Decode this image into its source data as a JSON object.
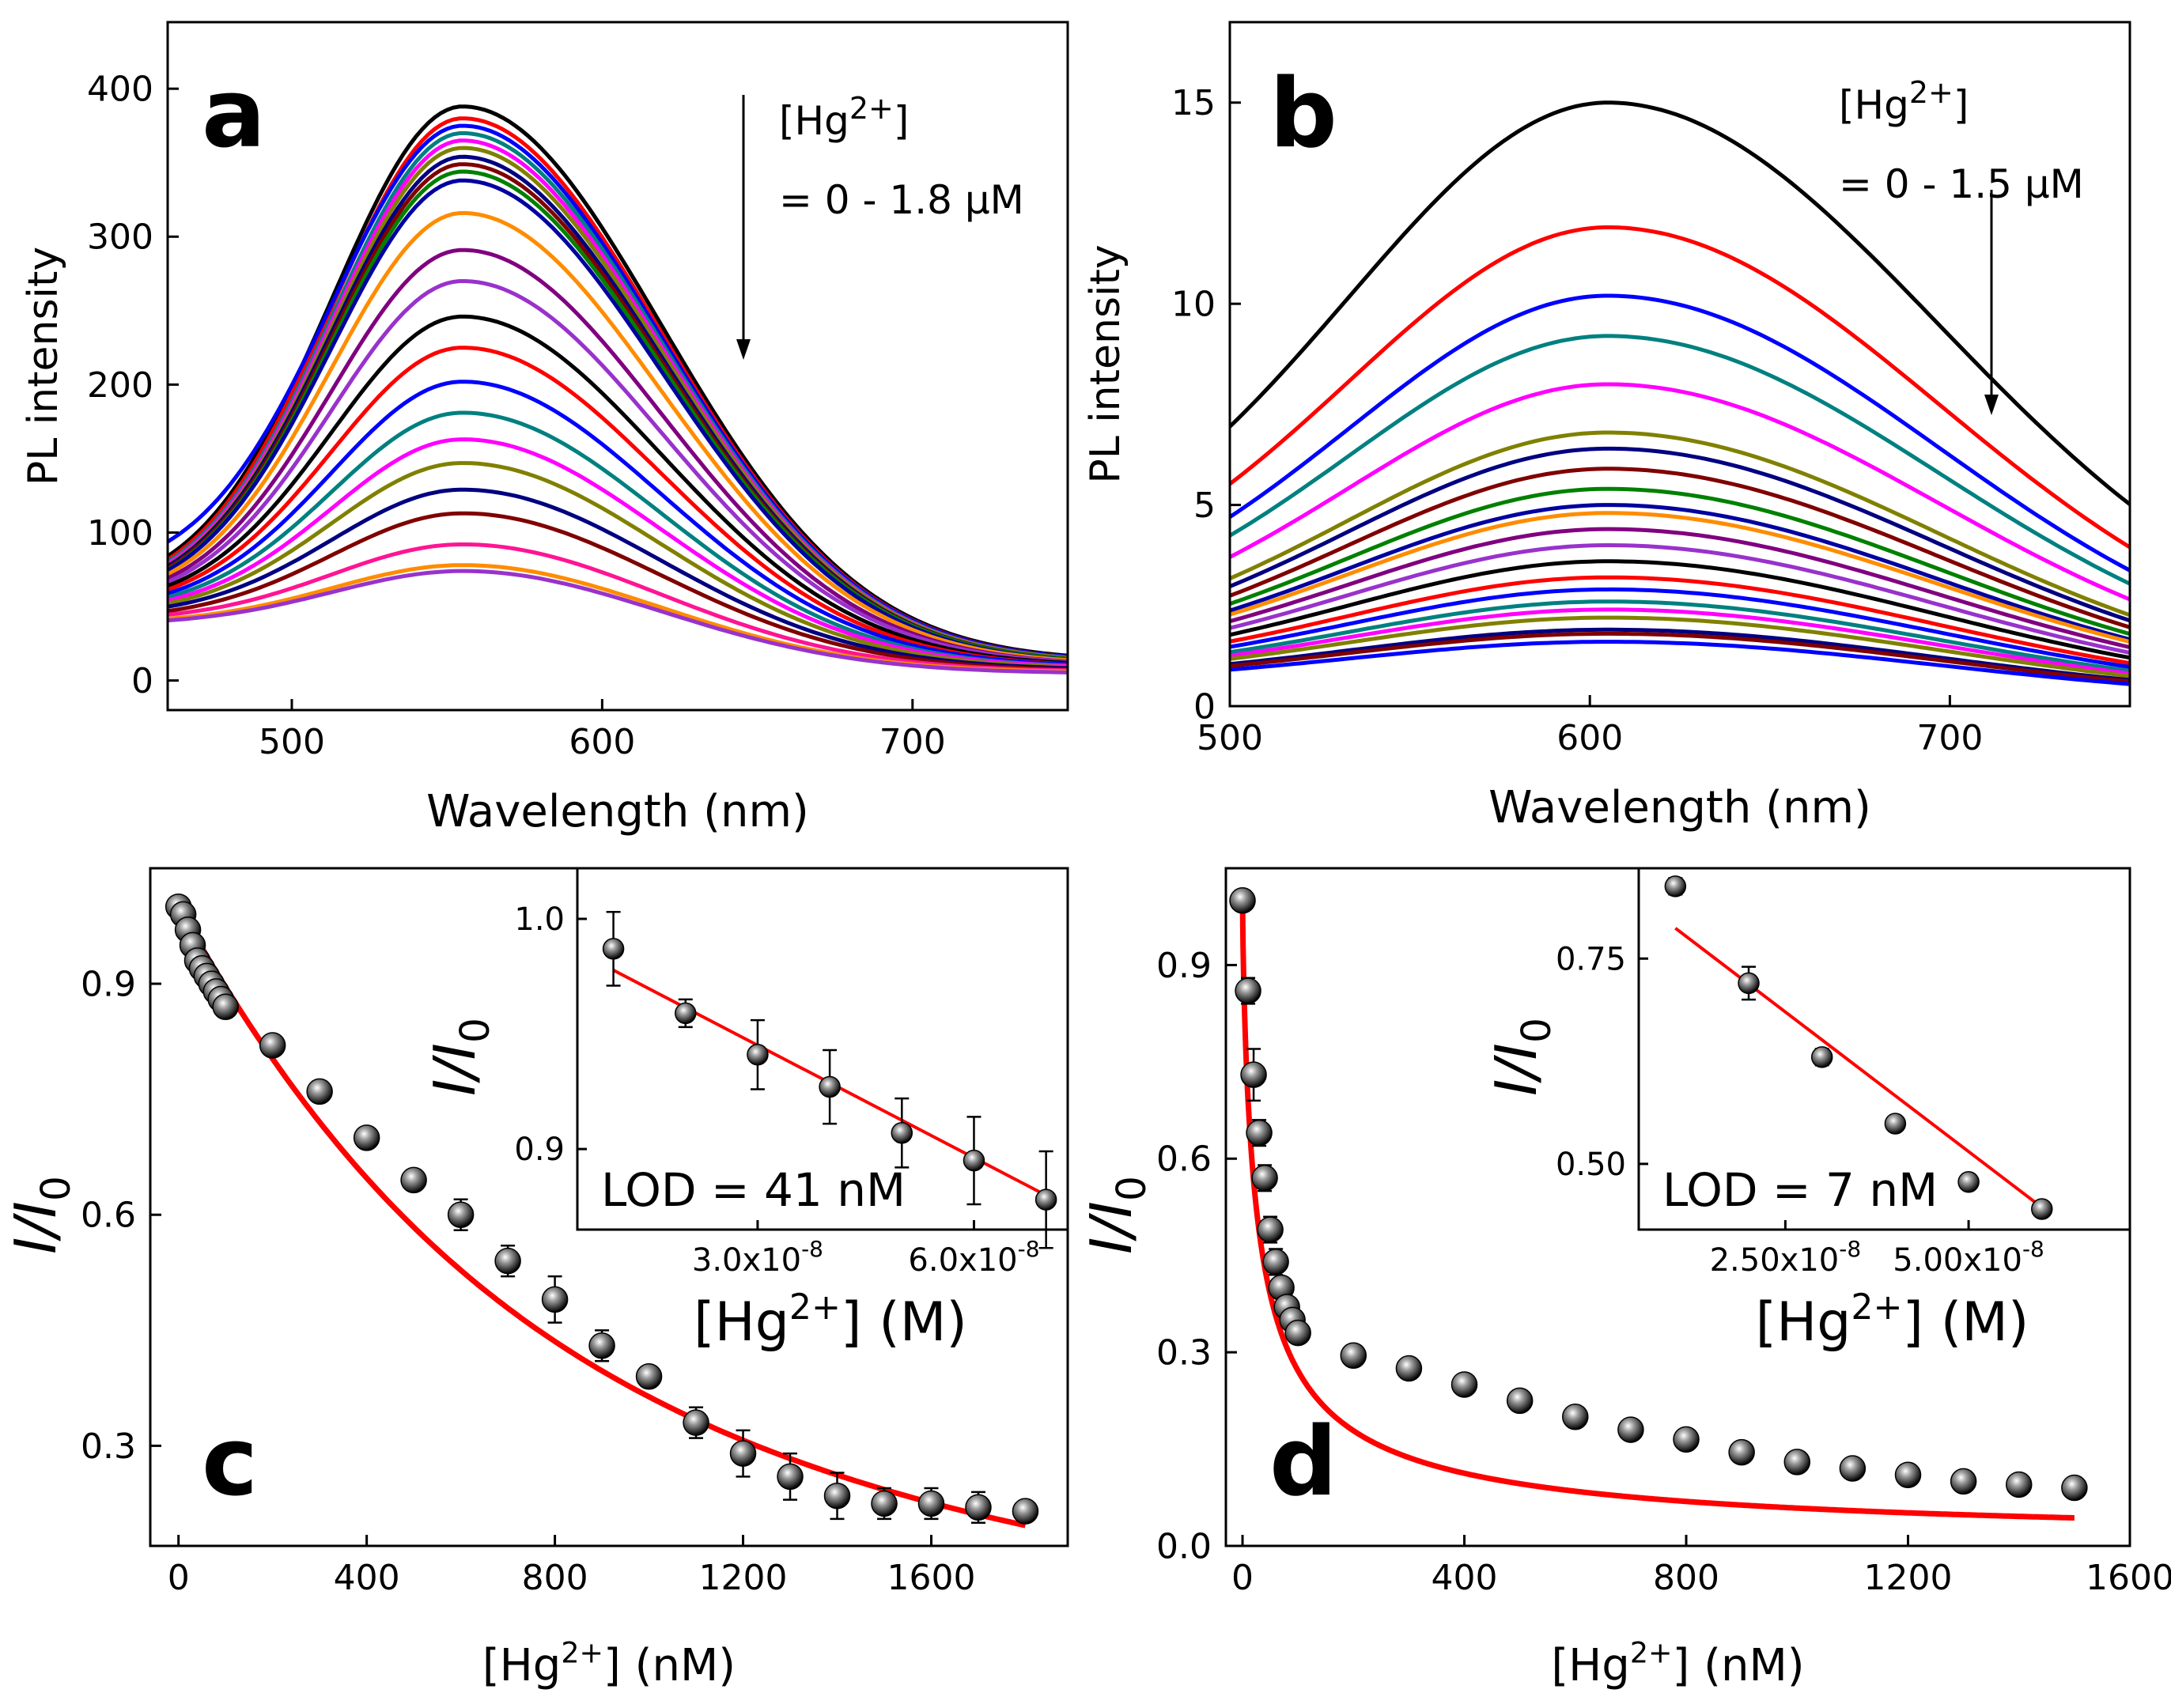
{
  "figure_description_free": true,
  "chart_data": [
    {
      "id": "a",
      "type": "line",
      "panel_letter": "a",
      "xlabel": "Wavelength (nm)",
      "ylabel": "PL intensity",
      "xlim": [
        460,
        750
      ],
      "ylim": [
        -20,
        445
      ],
      "xticks": [
        500,
        600,
        700
      ],
      "yticks": [
        0,
        100,
        200,
        300,
        400
      ],
      "annotation_line1": "[Hg",
      "annotation_sup": "2+",
      "annotation_line1_end": "]",
      "annotation_line2": "= 0 - 1.8 μM",
      "peak_nm": 555,
      "sigma_left": 42,
      "sigma_right": 64,
      "series": [
        {
          "color": "#000000",
          "peak": 388,
          "base_left": 65,
          "tail_right": 22
        },
        {
          "color": "#ff0000",
          "peak": 380,
          "base_left": 63,
          "tail_right": 21
        },
        {
          "color": "#0000ff",
          "peak": 375,
          "base_left": 78,
          "tail_right": 21
        },
        {
          "color": "#008080",
          "peak": 370,
          "base_left": 62,
          "tail_right": 20
        },
        {
          "color": "#ff00ff",
          "peak": 365,
          "base_left": 61,
          "tail_right": 20
        },
        {
          "color": "#808000",
          "peak": 360,
          "base_left": 60,
          "tail_right": 20
        },
        {
          "color": "#000080",
          "peak": 354,
          "base_left": 60,
          "tail_right": 19
        },
        {
          "color": "#800000",
          "peak": 349,
          "base_left": 59,
          "tail_right": 19
        },
        {
          "color": "#008000",
          "peak": 344,
          "base_left": 58,
          "tail_right": 19
        },
        {
          "color": "#0000a0",
          "peak": 338,
          "base_left": 58,
          "tail_right": 18
        },
        {
          "color": "#ff8c00",
          "peak": 316,
          "base_left": 57,
          "tail_right": 18
        },
        {
          "color": "#800080",
          "peak": 291,
          "base_left": 56,
          "tail_right": 17
        },
        {
          "color": "#9932cc",
          "peak": 270,
          "base_left": 55,
          "tail_right": 17
        },
        {
          "color": "#000000",
          "peak": 246,
          "base_left": 54,
          "tail_right": 16
        },
        {
          "color": "#ff0000",
          "peak": 225,
          "base_left": 53,
          "tail_right": 15
        },
        {
          "color": "#0000ff",
          "peak": 202,
          "base_left": 52,
          "tail_right": 15
        },
        {
          "color": "#008080",
          "peak": 181,
          "base_left": 51,
          "tail_right": 14
        },
        {
          "color": "#ff00ff",
          "peak": 163,
          "base_left": 50,
          "tail_right": 14
        },
        {
          "color": "#808000",
          "peak": 147,
          "base_left": 49,
          "tail_right": 13
        },
        {
          "color": "#000080",
          "peak": 129,
          "base_left": 48,
          "tail_right": 12
        },
        {
          "color": "#800000",
          "peak": 113,
          "base_left": 46,
          "tail_right": 11
        },
        {
          "color": "#ff1493",
          "peak": 92,
          "base_left": 45,
          "tail_right": 10
        },
        {
          "color": "#ff8c00",
          "peak": 78,
          "base_left": 43,
          "tail_right": 9
        },
        {
          "color": "#9932cc",
          "peak": 74,
          "base_left": 42,
          "tail_right": 8
        }
      ]
    },
    {
      "id": "b",
      "type": "line",
      "panel_letter": "b",
      "xlabel": "Wavelength (nm)",
      "ylabel": "PL intensity",
      "xlim": [
        500,
        750
      ],
      "ylim": [
        0,
        17
      ],
      "xticks": [
        500,
        600,
        700
      ],
      "yticks": [
        0,
        5,
        10,
        15
      ],
      "annotation_line1": "[Hg",
      "annotation_sup": "2+",
      "annotation_line1_end": "]",
      "annotation_line2": "= 0 - 1.5 μM",
      "peak_nm": 605,
      "sigma_left": 72,
      "sigma_right": 92,
      "series": [
        {
          "color": "#000000",
          "peak": 15.0,
          "base_left": 3.0,
          "tail_right": 1.6
        },
        {
          "color": "#ff0000",
          "peak": 11.9,
          "base_left": 2.4,
          "tail_right": 1.2
        },
        {
          "color": "#0000ff",
          "peak": 10.2,
          "base_left": 2.0,
          "tail_right": 1.0
        },
        {
          "color": "#008080",
          "peak": 9.2,
          "base_left": 1.8,
          "tail_right": 0.9
        },
        {
          "color": "#ff00ff",
          "peak": 8.0,
          "base_left": 1.6,
          "tail_right": 0.8
        },
        {
          "color": "#808000",
          "peak": 6.8,
          "base_left": 1.4,
          "tail_right": 0.7
        },
        {
          "color": "#000080",
          "peak": 6.4,
          "base_left": 1.3,
          "tail_right": 0.65
        },
        {
          "color": "#800000",
          "peak": 5.9,
          "base_left": 1.2,
          "tail_right": 0.6
        },
        {
          "color": "#008000",
          "peak": 5.4,
          "base_left": 1.15,
          "tail_right": 0.55
        },
        {
          "color": "#0000a0",
          "peak": 5.0,
          "base_left": 1.1,
          "tail_right": 0.5
        },
        {
          "color": "#ff8c00",
          "peak": 4.8,
          "base_left": 1.05,
          "tail_right": 0.5
        },
        {
          "color": "#800080",
          "peak": 4.4,
          "base_left": 1.0,
          "tail_right": 0.45
        },
        {
          "color": "#9932cc",
          "peak": 4.0,
          "base_left": 0.95,
          "tail_right": 0.4
        },
        {
          "color": "#000000",
          "peak": 3.6,
          "base_left": 0.9,
          "tail_right": 0.38
        },
        {
          "color": "#ff0000",
          "peak": 3.2,
          "base_left": 0.85,
          "tail_right": 0.34
        },
        {
          "color": "#0000ff",
          "peak": 2.9,
          "base_left": 0.8,
          "tail_right": 0.32
        },
        {
          "color": "#008080",
          "peak": 2.6,
          "base_left": 0.75,
          "tail_right": 0.3
        },
        {
          "color": "#ff00ff",
          "peak": 2.4,
          "base_left": 0.72,
          "tail_right": 0.28
        },
        {
          "color": "#808000",
          "peak": 2.2,
          "base_left": 0.7,
          "tail_right": 0.26
        },
        {
          "color": "#000080",
          "peak": 1.9,
          "base_left": 0.66,
          "tail_right": 0.24
        },
        {
          "color": "#800000",
          "peak": 1.8,
          "base_left": 0.64,
          "tail_right": 0.22
        },
        {
          "color": "#0000ff",
          "peak": 1.6,
          "base_left": 0.6,
          "tail_right": 0.2
        }
      ]
    },
    {
      "id": "c",
      "type": "scatter",
      "panel_letter": "c",
      "xlabel_pre": "[Hg",
      "xlabel_sup": "2+",
      "xlabel_post": "] (nM)",
      "ylabel_main": "I/I",
      "ylabel_sub": "0",
      "xlim": [
        -60,
        1890
      ],
      "ylim": [
        0.17,
        1.05
      ],
      "xticks": [
        0,
        400,
        800,
        1200,
        1600
      ],
      "yticks": [
        0.3,
        0.6,
        0.9
      ],
      "points": [
        {
          "x": 0,
          "y": 1.0,
          "err": 0.0
        },
        {
          "x": 10,
          "y": 0.99,
          "err": 0.0
        },
        {
          "x": 20,
          "y": 0.97,
          "err": 0.0
        },
        {
          "x": 30,
          "y": 0.95,
          "err": 0.0
        },
        {
          "x": 40,
          "y": 0.93,
          "err": 0.0
        },
        {
          "x": 50,
          "y": 0.92,
          "err": 0.0
        },
        {
          "x": 60,
          "y": 0.91,
          "err": 0.0
        },
        {
          "x": 70,
          "y": 0.9,
          "err": 0.0
        },
        {
          "x": 80,
          "y": 0.89,
          "err": 0.0
        },
        {
          "x": 90,
          "y": 0.88,
          "err": 0.0
        },
        {
          "x": 100,
          "y": 0.87,
          "err": 0.0
        },
        {
          "x": 200,
          "y": 0.82,
          "err": 0.01
        },
        {
          "x": 300,
          "y": 0.76,
          "err": 0.01
        },
        {
          "x": 400,
          "y": 0.7,
          "err": 0.01
        },
        {
          "x": 500,
          "y": 0.645,
          "err": 0.01
        },
        {
          "x": 600,
          "y": 0.6,
          "err": 0.02
        },
        {
          "x": 700,
          "y": 0.54,
          "err": 0.02
        },
        {
          "x": 800,
          "y": 0.49,
          "err": 0.03
        },
        {
          "x": 900,
          "y": 0.43,
          "err": 0.02
        },
        {
          "x": 1000,
          "y": 0.39,
          "err": 0.01
        },
        {
          "x": 1100,
          "y": 0.33,
          "err": 0.02
        },
        {
          "x": 1200,
          "y": 0.29,
          "err": 0.03
        },
        {
          "x": 1300,
          "y": 0.26,
          "err": 0.03
        },
        {
          "x": 1400,
          "y": 0.235,
          "err": 0.03
        },
        {
          "x": 1500,
          "y": 0.225,
          "err": 0.02
        },
        {
          "x": 1600,
          "y": 0.225,
          "err": 0.02
        },
        {
          "x": 1700,
          "y": 0.22,
          "err": 0.02
        },
        {
          "x": 1800,
          "y": 0.215,
          "err": 0.0
        }
      ],
      "fit": {
        "model": "1/(1+a*x+b*x^2)",
        "a": 0.0011,
        "b": 6.5e-07,
        "x_range": [
          0,
          1800
        ]
      },
      "inset": {
        "xlim": [
          5e-09,
          7.3e-08
        ],
        "ylim": [
          0.865,
          1.022
        ],
        "xticks": [
          3e-08,
          6e-08
        ],
        "xtick_labels": [
          [
            "3.0x10",
            "-8"
          ],
          [
            "6.0x10",
            "-8"
          ]
        ],
        "yticks": [
          0.9,
          1.0
        ],
        "ytick_labels": [
          "0.9",
          "1.0"
        ],
        "ylabel_main": "I/I",
        "ylabel_sub": "0",
        "xlabel_pre": "[Hg",
        "xlabel_sup": "2+",
        "xlabel_post": "] (M)",
        "lod_text": "LOD = 41 nM",
        "points": [
          {
            "x": 1e-08,
            "y": 0.987,
            "err": 0.016
          },
          {
            "x": 2e-08,
            "y": 0.959,
            "err": 0.006
          },
          {
            "x": 3e-08,
            "y": 0.941,
            "err": 0.015
          },
          {
            "x": 4e-08,
            "y": 0.927,
            "err": 0.016
          },
          {
            "x": 5e-08,
            "y": 0.907,
            "err": 0.015
          },
          {
            "x": 6e-08,
            "y": 0.895,
            "err": 0.019
          },
          {
            "x": 7e-08,
            "y": 0.878,
            "err": 0.021
          }
        ],
        "fit": {
          "slope": -1630000,
          "intercept": 0.994,
          "x_range": [
            1e-08,
            7e-08
          ]
        }
      }
    },
    {
      "id": "d",
      "type": "scatter",
      "panel_letter": "d",
      "xlabel_pre": "[Hg",
      "xlabel_sup": "2+",
      "xlabel_post": "] (nM)",
      "ylabel_main": "I/I",
      "ylabel_sub": "0",
      "xlim": [
        -30,
        1600
      ],
      "ylim": [
        0,
        1.05
      ],
      "xticks": [
        0,
        400,
        800,
        1200,
        1600
      ],
      "yticks": [
        0.0,
        0.3,
        0.6,
        0.9
      ],
      "ytick_labels": [
        "0.0",
        "0.3",
        "0.6",
        "0.9"
      ],
      "points": [
        {
          "x": 0,
          "y": 1.0,
          "err": 0.0
        },
        {
          "x": 10,
          "y": 0.86,
          "err": 0.02
        },
        {
          "x": 20,
          "y": 0.73,
          "err": 0.04
        },
        {
          "x": 30,
          "y": 0.64,
          "err": 0.02
        },
        {
          "x": 40,
          "y": 0.57,
          "err": 0.02
        },
        {
          "x": 50,
          "y": 0.49,
          "err": 0.02
        },
        {
          "x": 60,
          "y": 0.44,
          "err": 0.02
        },
        {
          "x": 70,
          "y": 0.4,
          "err": 0.01
        },
        {
          "x": 80,
          "y": 0.37,
          "err": 0.01
        },
        {
          "x": 90,
          "y": 0.35,
          "err": 0.01
        },
        {
          "x": 100,
          "y": 0.33,
          "err": 0.01
        },
        {
          "x": 200,
          "y": 0.295,
          "err": 0.0
        },
        {
          "x": 300,
          "y": 0.275,
          "err": 0.0
        },
        {
          "x": 400,
          "y": 0.25,
          "err": 0.0
        },
        {
          "x": 500,
          "y": 0.225,
          "err": 0.0
        },
        {
          "x": 600,
          "y": 0.2,
          "err": 0.0
        },
        {
          "x": 700,
          "y": 0.18,
          "err": 0.0
        },
        {
          "x": 800,
          "y": 0.165,
          "err": 0.0
        },
        {
          "x": 900,
          "y": 0.145,
          "err": 0.0
        },
        {
          "x": 1000,
          "y": 0.13,
          "err": 0.0
        },
        {
          "x": 1100,
          "y": 0.12,
          "err": 0.0
        },
        {
          "x": 1200,
          "y": 0.11,
          "err": 0.0
        },
        {
          "x": 1300,
          "y": 0.1,
          "err": 0.0
        },
        {
          "x": 1400,
          "y": 0.095,
          "err": 0.0
        },
        {
          "x": 1500,
          "y": 0.09,
          "err": 0.0
        }
      ],
      "fit": {
        "model": "1/(1+a*x^p)",
        "a": 0.075,
        "p": 0.777,
        "x_range": [
          0,
          1500
        ]
      },
      "inset": {
        "xlim": [
          5e-09,
          7.2e-08
        ],
        "ylim": [
          0.42,
          0.86
        ],
        "xticks": [
          2.5e-08,
          5e-08
        ],
        "xtick_labels": [
          [
            "2.50x10",
            "-8"
          ],
          [
            "5.00x10",
            "-8"
          ]
        ],
        "yticks": [
          0.5,
          0.75
        ],
        "ytick_labels": [
          "0.50",
          "0.75"
        ],
        "ylabel_main": "I/I",
        "ylabel_sub": "0",
        "xlabel_pre": "[Hg",
        "xlabel_sup": "2+",
        "xlabel_post": "] (M)",
        "lod_text": "LOD = 7 nM",
        "points": [
          {
            "x": 1e-08,
            "y": 0.838,
            "err": 0.01
          },
          {
            "x": 2e-08,
            "y": 0.72,
            "err": 0.02
          },
          {
            "x": 3e-08,
            "y": 0.63,
            "err": 0.01
          },
          {
            "x": 4e-08,
            "y": 0.549,
            "err": 0.007
          },
          {
            "x": 5e-08,
            "y": 0.478,
            "err": 0.005
          },
          {
            "x": 6e-08,
            "y": 0.445,
            "err": 0.006
          }
        ],
        "fit": {
          "slope": -6800000,
          "intercept": 0.855,
          "x_range": [
            1e-08,
            6e-08
          ]
        }
      }
    }
  ]
}
